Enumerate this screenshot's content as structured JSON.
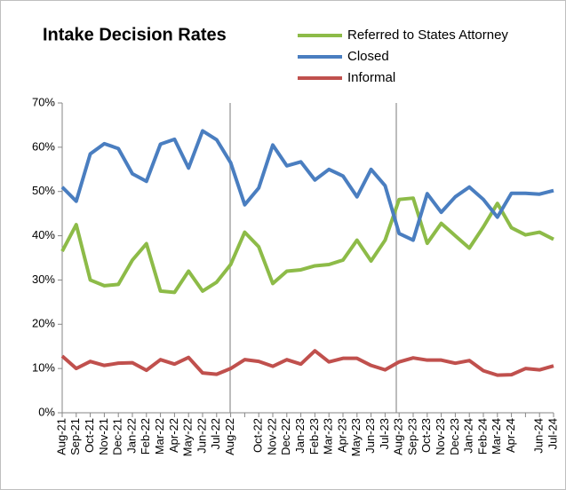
{
  "chart_data": {
    "type": "line",
    "title": "Intake Decision Rates",
    "categories": [
      "Aug-21",
      "Sep-21",
      "Oct-21",
      "Nov-21",
      "Dec-21",
      "Jan-22",
      "Feb-22",
      "Mar-22",
      "Apr-22",
      "May-22",
      "Jun-22",
      "Jul-22",
      "Aug-22",
      null,
      "Oct-22",
      "Nov-22",
      "Dec-22",
      "Jan-23",
      "Feb-23",
      "Mar-23",
      "Apr-23",
      "May-23",
      "Jun-23",
      "Jul-23",
      "Aug-23",
      "Sep-23",
      "Oct-23",
      "Nov-23",
      "Dec-23",
      "Jan-24",
      "Feb-24",
      "Mar-24",
      "Apr-24",
      null,
      "Jun-24",
      "Jul-24"
    ],
    "series": [
      {
        "name": "Referred to States Attorney",
        "color": "#8dbb48",
        "values": [
          36.5,
          42.5,
          30,
          28.7,
          29,
          34.5,
          38.2,
          27.5,
          27.2,
          32,
          27.5,
          29.5,
          33.5,
          40.8,
          37.5,
          29.2,
          32,
          32.3,
          33.2,
          33.5,
          34.5,
          39,
          34.3,
          39,
          48.2,
          48.5,
          38.3,
          42.8,
          40,
          37.2,
          42,
          47.3,
          41.8,
          40.2,
          40.8,
          39.2
        ]
      },
      {
        "name": "Closed",
        "color": "#4a7ec0",
        "values": [
          51,
          47.8,
          58.5,
          60.8,
          59.7,
          54,
          52.3,
          60.7,
          61.8,
          55.3,
          63.7,
          61.7,
          56.5,
          47,
          50.8,
          60.5,
          55.8,
          56.7,
          52.6,
          55,
          53.5,
          48.8,
          55,
          51.3,
          40.5,
          39,
          49.5,
          45.3,
          48.8,
          51,
          48.2,
          44.2,
          49.6,
          49.6,
          49.4,
          50.2
        ]
      },
      {
        "name": "Informal",
        "color": "#c0504d",
        "values": [
          12.8,
          10,
          11.6,
          10.7,
          11.2,
          11.3,
          9.6,
          12,
          11,
          12.5,
          9,
          8.7,
          10,
          12,
          11.6,
          10.5,
          12,
          11,
          14,
          11.5,
          12.3,
          12.3,
          10.7,
          9.7,
          11.5,
          12.4,
          11.9,
          11.9,
          11.2,
          11.8,
          9.5,
          8.5,
          8.6,
          10,
          9.7,
          10.6
        ]
      }
    ],
    "ylim": [
      0,
      70
    ],
    "yticks": [
      {
        "value": 0,
        "label": "0%"
      },
      {
        "value": 10,
        "label": "10%"
      },
      {
        "value": 20,
        "label": "20%"
      },
      {
        "value": 30,
        "label": "30%"
      },
      {
        "value": 40,
        "label": "40%"
      },
      {
        "value": 50,
        "label": "50%"
      },
      {
        "value": 60,
        "label": "60%"
      },
      {
        "value": 70,
        "label": "70%"
      }
    ],
    "legend": "top-right"
  }
}
